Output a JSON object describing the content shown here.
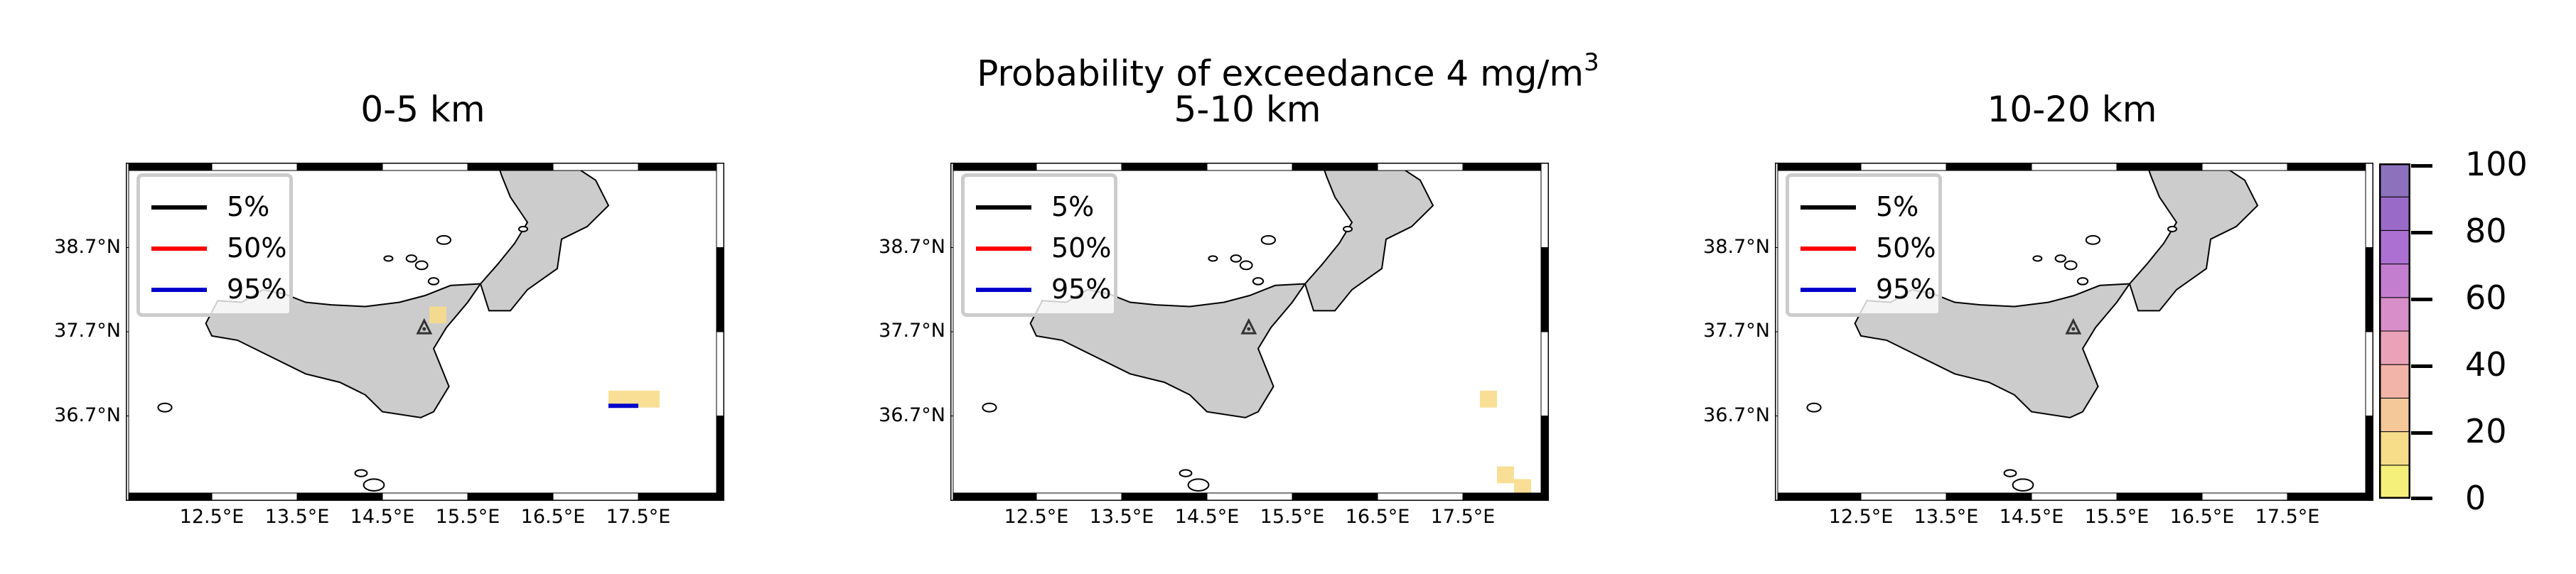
{
  "title": {
    "main": "Probability of exceedance 4 mg/m",
    "superscript": "3"
  },
  "panels": [
    {
      "subtitle": "0-5 km",
      "has_volcano": true
    },
    {
      "subtitle": "5-10 km",
      "has_volcano": true
    },
    {
      "subtitle": "10-20 km",
      "has_volcano": true
    }
  ],
  "legend": {
    "items": [
      {
        "label": "5%",
        "color": "#000000"
      },
      {
        "label": "50%",
        "color": "#ff0000"
      },
      {
        "label": "95%",
        "color": "#0000cc"
      }
    ]
  },
  "axes": {
    "lat_ticks": [
      "38.7°N",
      "37.7°N",
      "36.7°N"
    ],
    "lon_ticks": [
      "12.5°E",
      "13.5°E",
      "14.5°E",
      "15.5°E",
      "16.5°E",
      "17.5°E"
    ],
    "lon_range": [
      11.5,
      18.5
    ],
    "lat_range": [
      35.7,
      39.7
    ]
  },
  "colorbar": {
    "ticks": [
      "100",
      "80",
      "60",
      "40",
      "20",
      "0"
    ],
    "min": 0,
    "max": 100,
    "colors": [
      "#f5f07a",
      "#f7dc8a",
      "#f5c89a",
      "#f2b4a8",
      "#e9a2b8",
      "#d88ec8",
      "#c47ed0",
      "#ac70d2",
      "#9a6ac8",
      "#8c72bc"
    ]
  },
  "chart_data": {
    "type": "heatmap",
    "variable": "Probability of exceedance",
    "threshold": "4 mg/m3",
    "volcano": {
      "lon": 14.99,
      "lat": 37.75
    },
    "panels": [
      {
        "layer": "0-5 km",
        "cells": [
          {
            "lon": 15.15,
            "lat": 37.9,
            "prob": 10
          },
          {
            "lon": 17.25,
            "lat": 36.9,
            "prob": 15
          },
          {
            "lon": 17.45,
            "lat": 36.9,
            "prob": 15
          },
          {
            "lon": 17.65,
            "lat": 36.9,
            "prob": 15
          }
        ],
        "contours": [
          {
            "level": "95%",
            "lon": [
              17.15,
              17.5
            ],
            "lat": [
              36.82,
              36.82
            ]
          }
        ]
      },
      {
        "layer": "5-10 km",
        "cells": [
          {
            "lon": 17.8,
            "lat": 36.9,
            "prob": 10
          },
          {
            "lon": 18.0,
            "lat": 36.0,
            "prob": 10
          },
          {
            "lon": 18.2,
            "lat": 35.85,
            "prob": 10
          }
        ],
        "contours": []
      },
      {
        "layer": "10-20 km",
        "cells": [],
        "contours": []
      }
    ]
  }
}
